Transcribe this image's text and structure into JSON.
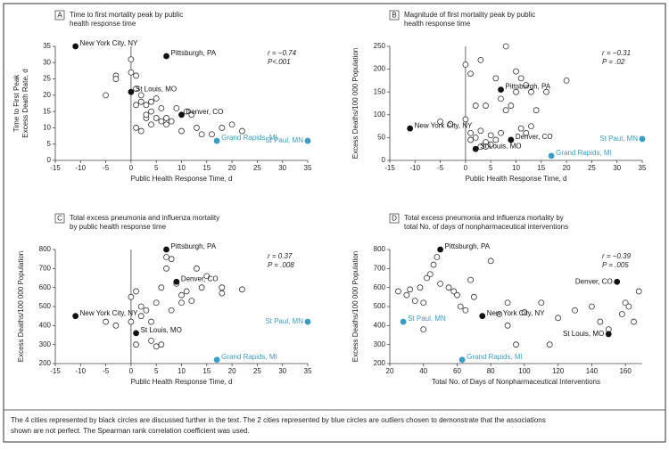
{
  "chart_data": [
    {
      "type": "scatter",
      "panel": "A",
      "title": [
        "Time to first mortality peak by public",
        "health response time"
      ],
      "xlabel": "Public Health Response Time, d",
      "ylabel": [
        "Time to First Peak",
        "Excess Death Rate, d"
      ],
      "stats": [
        "r = −0.74",
        "P<.001"
      ],
      "xlim": [
        -15,
        35
      ],
      "xticks": [
        -15,
        -10,
        -5,
        0,
        5,
        10,
        15,
        20,
        25,
        30,
        35
      ],
      "ylim": [
        0,
        35
      ],
      "yticks": [
        0,
        5,
        10,
        15,
        20,
        25,
        30,
        35
      ],
      "vline": 0,
      "series": [
        {
          "marker": "open",
          "color": "#333333",
          "x": [
            0,
            0,
            1,
            -3,
            -3,
            -5,
            1,
            2,
            1,
            2,
            3,
            4,
            5,
            4,
            3,
            1,
            2,
            4,
            5,
            6,
            7,
            7,
            8,
            9,
            10,
            11,
            12,
            13,
            14,
            16,
            18,
            20,
            22,
            6,
            3
          ],
          "values": [
            31,
            27,
            26,
            26,
            25,
            20,
            22,
            20,
            17,
            18,
            17,
            18,
            19,
            15,
            13,
            10,
            9,
            11,
            13,
            12,
            11,
            13,
            12,
            16,
            9,
            15,
            14,
            10,
            8,
            8,
            10,
            11,
            9,
            16,
            14
          ]
        },
        {
          "marker": "filled",
          "color": "#111111",
          "x": [
            -11,
            7,
            0,
            10
          ],
          "values": [
            35,
            32,
            21,
            14
          ],
          "point_labels": [
            "New York City, NY",
            "Pittsburgh, PA",
            "St Louis, MO",
            "Denver, CO"
          ]
        },
        {
          "marker": "filled",
          "color": "#3a9cc4",
          "x": [
            17,
            35
          ],
          "values": [
            6,
            6
          ],
          "point_labels": [
            "Grand Rapids, MI",
            "St Paul, MN"
          ]
        }
      ]
    },
    {
      "type": "scatter",
      "panel": "B",
      "title": [
        "Magnitude of first mortality peak by public",
        "health response time"
      ],
      "xlabel": "Public Health Response Time, d",
      "ylabel": [
        "Excess Deaths/100 000 Population"
      ],
      "stats": [
        "r = −0.31",
        "P = .02"
      ],
      "xlim": [
        -15,
        35
      ],
      "xticks": [
        -15,
        -10,
        -5,
        0,
        5,
        10,
        15,
        20,
        25,
        30,
        35
      ],
      "ylim": [
        0,
        250
      ],
      "yticks": [
        0,
        50,
        100,
        150,
        200,
        250
      ],
      "vline": 0,
      "series": [
        {
          "marker": "open",
          "color": "#333333",
          "x": [
            0,
            1,
            3,
            4,
            6,
            7,
            8,
            10,
            11,
            12,
            13,
            10,
            14,
            9,
            8,
            2,
            0,
            1,
            2,
            3,
            4,
            5,
            6,
            7,
            4,
            5,
            3,
            1,
            11,
            12,
            13,
            -3,
            -5,
            20,
            16
          ],
          "values": [
            210,
            190,
            220,
            120,
            180,
            135,
            250,
            195,
            180,
            165,
            150,
            150,
            110,
            120,
            110,
            120,
            90,
            60,
            50,
            65,
            40,
            55,
            45,
            60,
            30,
            35,
            30,
            45,
            70,
            60,
            75,
            80,
            85,
            175,
            150
          ]
        },
        {
          "marker": "filled",
          "color": "#111111",
          "x": [
            -11,
            7,
            2,
            9
          ],
          "values": [
            70,
            155,
            25,
            45
          ],
          "point_labels": [
            "New York City, NY",
            "Pittsburgh, PA",
            "St Louis, MO",
            "Denver, CO"
          ]
        },
        {
          "marker": "filled",
          "color": "#3a9cc4",
          "x": [
            17,
            35
          ],
          "values": [
            10,
            47
          ],
          "point_labels": [
            "Grand Rapids, MI",
            "St Paul, MN"
          ]
        }
      ]
    },
    {
      "type": "scatter",
      "panel": "C",
      "title": [
        "Total excess pneumonia and influenza mortality",
        "by public health response time"
      ],
      "xlabel": "Public Health Response Time, d",
      "ylabel": [
        "Excess Deaths/100 000 Population"
      ],
      "stats": [
        "r = 0.37",
        "P = .008"
      ],
      "xlim": [
        -15,
        35
      ],
      "xticks": [
        -15,
        -10,
        -5,
        0,
        5,
        10,
        15,
        20,
        25,
        30,
        35
      ],
      "ylim": [
        200,
        800
      ],
      "yticks": [
        200,
        300,
        400,
        500,
        600,
        700,
        800
      ],
      "vline": 0,
      "series": [
        {
          "marker": "open",
          "color": "#333333",
          "x": [
            0,
            1,
            2,
            3,
            4,
            5,
            6,
            7,
            8,
            9,
            10,
            11,
            12,
            13,
            14,
            15,
            18,
            18,
            22,
            -3,
            -5,
            1,
            4,
            5,
            6,
            0,
            2,
            8,
            10,
            7
          ],
          "values": [
            550,
            580,
            500,
            480,
            420,
            520,
            600,
            700,
            750,
            620,
            560,
            580,
            530,
            700,
            600,
            660,
            570,
            600,
            590,
            400,
            420,
            300,
            320,
            290,
            300,
            420,
            450,
            480,
            520,
            760
          ]
        },
        {
          "marker": "filled",
          "color": "#111111",
          "x": [
            -11,
            7,
            1,
            9
          ],
          "values": [
            450,
            800,
            360,
            630
          ],
          "point_labels": [
            "New York City, NY",
            "Pittsburgh, PA",
            "St Louis, MO",
            "Denver, CO"
          ]
        },
        {
          "marker": "filled",
          "color": "#3a9cc4",
          "x": [
            17,
            35
          ],
          "values": [
            220,
            420
          ],
          "point_labels": [
            "Grand Rapids, MI",
            "St Paul, MN"
          ]
        }
      ]
    },
    {
      "type": "scatter",
      "panel": "D",
      "title": [
        "Total excess pneumonia and influenza mortality by",
        "total No. of days of nonpharmaceutical interventions"
      ],
      "xlabel": "Total No. of Days of Nonpharmaceutical Interventions",
      "ylabel": [
        "Excess Deaths/100 000 Population"
      ],
      "stats": [
        "r = −0.39",
        "P = .005"
      ],
      "xlim": [
        20,
        170
      ],
      "xticks": [
        20,
        40,
        60,
        80,
        100,
        120,
        140,
        160
      ],
      "ylim": [
        200,
        800
      ],
      "yticks": [
        200,
        300,
        400,
        500,
        600,
        700,
        800
      ],
      "series": [
        {
          "marker": "open",
          "color": "#333333",
          "x": [
            25,
            30,
            32,
            35,
            38,
            40,
            42,
            44,
            46,
            48,
            50,
            55,
            58,
            60,
            62,
            65,
            68,
            70,
            80,
            85,
            90,
            95,
            100,
            110,
            115,
            120,
            130,
            140,
            145,
            150,
            160,
            162,
            165,
            168,
            158,
            40,
            90
          ],
          "values": [
            580,
            560,
            590,
            530,
            600,
            520,
            650,
            670,
            720,
            760,
            620,
            600,
            580,
            560,
            500,
            480,
            640,
            550,
            740,
            460,
            400,
            300,
            470,
            520,
            300,
            440,
            480,
            500,
            420,
            380,
            520,
            500,
            420,
            580,
            460,
            380,
            520
          ]
        },
        {
          "marker": "filled",
          "color": "#111111",
          "x": [
            50,
            75,
            155,
            150
          ],
          "values": [
            800,
            450,
            630,
            355
          ],
          "point_labels": [
            "Pittsburgh, PA",
            "New York City, NY",
            "Denver, CO",
            "St Louis, MO"
          ]
        },
        {
          "marker": "filled",
          "color": "#3a9cc4",
          "x": [
            28,
            63
          ],
          "values": [
            420,
            220
          ],
          "point_labels": [
            "St Paul, MN",
            "Grand Rapids, MI"
          ]
        }
      ]
    }
  ],
  "caption": [
    "The 4 cities represented by black circles are discussed further in the text. The 2 cities represented by blue circles are outliers chosen to demonstrate that the associations",
    "shown are not perfect. The Spearman rank correlation coefficient was used."
  ]
}
